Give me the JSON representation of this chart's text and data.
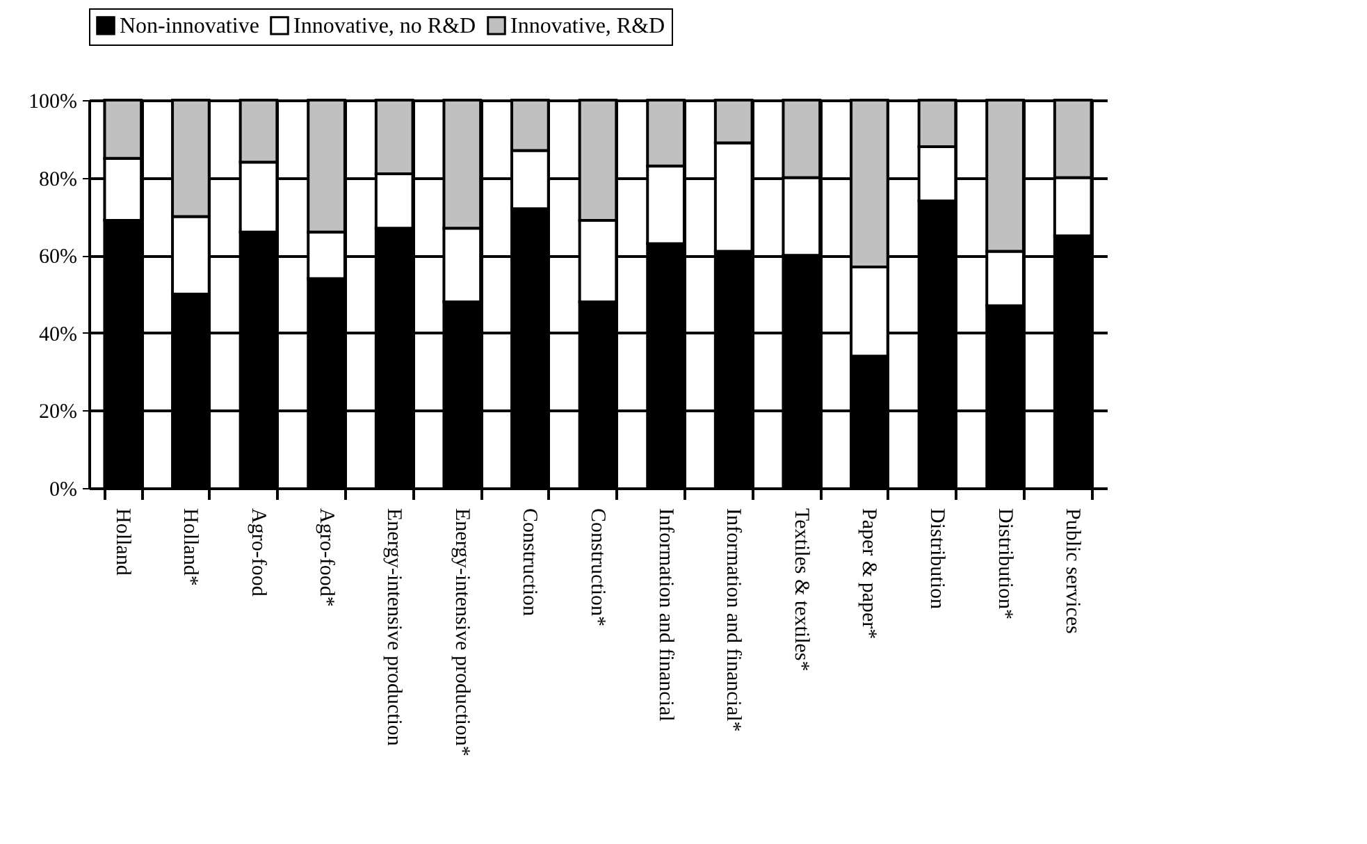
{
  "chart_data": {
    "type": "bar",
    "stacked": true,
    "categories": [
      "Holland",
      "Holland*",
      "Agro-food",
      "Agro-food*",
      "Energy-intensive production",
      "Energy-intensive production*",
      "Construction",
      "Construction*",
      "Information and financial",
      "Information and financial*",
      "Textiles & textiles*",
      "Paper & paper*",
      "Distribution",
      "Distribution*",
      "Public services"
    ],
    "series": [
      {
        "name": "Non-innovative",
        "color": "#000000",
        "values": [
          69,
          50,
          66,
          54,
          67,
          48,
          72,
          48,
          63,
          61,
          60,
          34,
          74,
          47,
          65
        ]
      },
      {
        "name": "Innovative, no R&D",
        "color": "#ffffff",
        "values": [
          16,
          20,
          18,
          12,
          14,
          19,
          15,
          21,
          20,
          28,
          20,
          23,
          14,
          14,
          15
        ]
      },
      {
        "name": "Innovative, R&D",
        "color": "#c0c0c0",
        "values": [
          15,
          30,
          16,
          34,
          19,
          33,
          13,
          31,
          17,
          11,
          20,
          43,
          12,
          39,
          20
        ]
      }
    ],
    "ylim": [
      0,
      100
    ],
    "yticks": [
      {
        "value": 0,
        "label": "0%"
      },
      {
        "value": 20,
        "label": "20%"
      },
      {
        "value": 40,
        "label": "40%"
      },
      {
        "value": 60,
        "label": "60%"
      },
      {
        "value": 80,
        "label": "80%"
      },
      {
        "value": 100,
        "label": "100%"
      }
    ],
    "grid": true,
    "legend": "top"
  }
}
